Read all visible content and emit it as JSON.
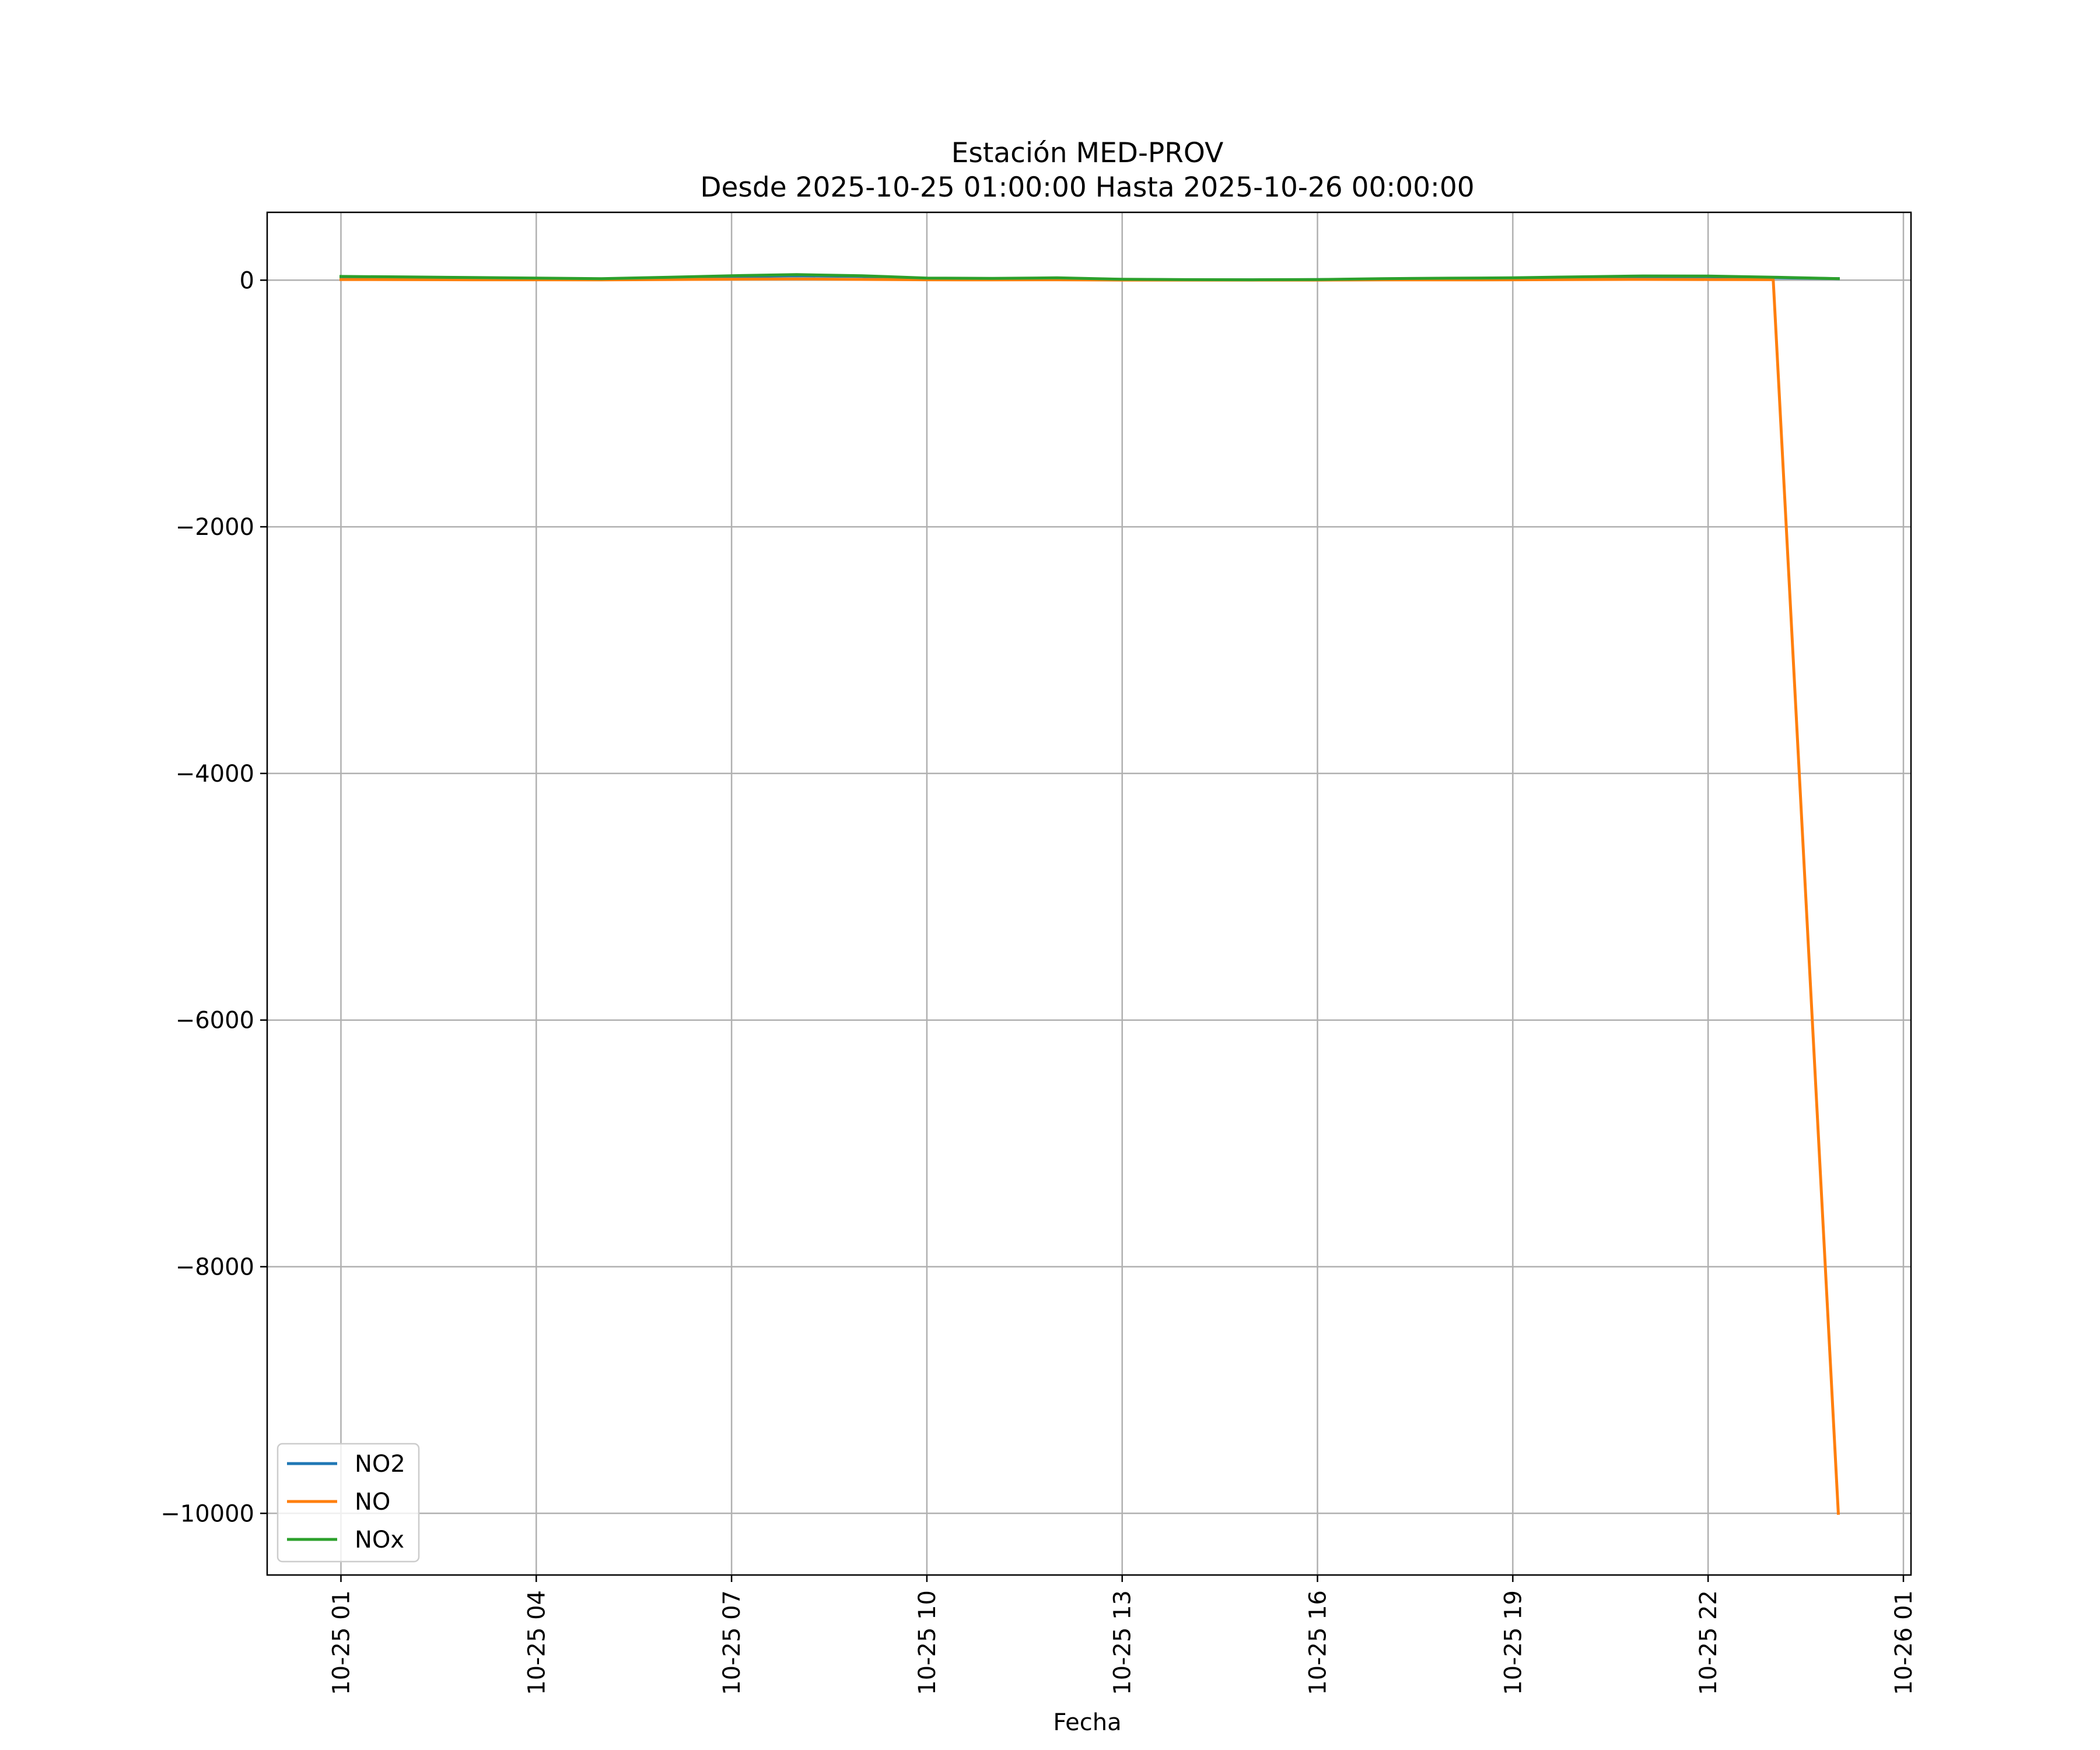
{
  "chart_data": {
    "type": "line",
    "title": "Estación MED-PROV",
    "subtitle": "Desde 2025-10-25 01:00:00 Hasta 2025-10-26 00:00:00",
    "xlabel": "Fecha",
    "ylabel": "",
    "x": [
      "2025-10-25 01:00",
      "2025-10-25 02:00",
      "2025-10-25 03:00",
      "2025-10-25 04:00",
      "2025-10-25 05:00",
      "2025-10-25 06:00",
      "2025-10-25 07:00",
      "2025-10-25 08:00",
      "2025-10-25 09:00",
      "2025-10-25 10:00",
      "2025-10-25 11:00",
      "2025-10-25 12:00",
      "2025-10-25 13:00",
      "2025-10-25 14:00",
      "2025-10-25 15:00",
      "2025-10-25 16:00",
      "2025-10-25 17:00",
      "2025-10-25 18:00",
      "2025-10-25 19:00",
      "2025-10-25 20:00",
      "2025-10-25 21:00",
      "2025-10-25 22:00",
      "2025-10-25 23:00",
      "2025-10-26 00:00"
    ],
    "xlim": [
      "2025-10-24 23:52",
      "2025-10-26 01:07"
    ],
    "ylim": [
      -10500,
      550
    ],
    "x_ticks": [
      "10-25 01",
      "10-25 04",
      "10-25 07",
      "10-25 10",
      "10-25 13",
      "10-25 16",
      "10-25 19",
      "10-25 22",
      "10-26 01"
    ],
    "y_ticks": [
      0,
      -2000,
      -4000,
      -6000,
      -8000,
      -10000
    ],
    "y_tick_labels": [
      "0",
      "−2000",
      "−4000",
      "−6000",
      "−8000",
      "−10000"
    ],
    "series": [
      {
        "name": "NO2",
        "color": "#1f77b4",
        "values": [
          25,
          22,
          18,
          14,
          10,
          18,
          28,
          35,
          30,
          14,
          12,
          16,
          6,
          3,
          2,
          4,
          10,
          14,
          16,
          22,
          28,
          28,
          20,
          12
        ]
      },
      {
        "name": "NO",
        "color": "#ff7f0e",
        "values": [
          5,
          4,
          3,
          3,
          2,
          5,
          8,
          10,
          6,
          3,
          2,
          3,
          1,
          1,
          1,
          1,
          2,
          2,
          3,
          5,
          6,
          5,
          4,
          -10000
        ]
      },
      {
        "name": "NOx",
        "color": "#2ca02c",
        "values": [
          30,
          26,
          21,
          17,
          12,
          23,
          36,
          45,
          36,
          17,
          14,
          19,
          7,
          4,
          3,
          5,
          12,
          16,
          19,
          27,
          34,
          33,
          24,
          12
        ]
      }
    ],
    "grid": true,
    "legend": "lower-left"
  }
}
